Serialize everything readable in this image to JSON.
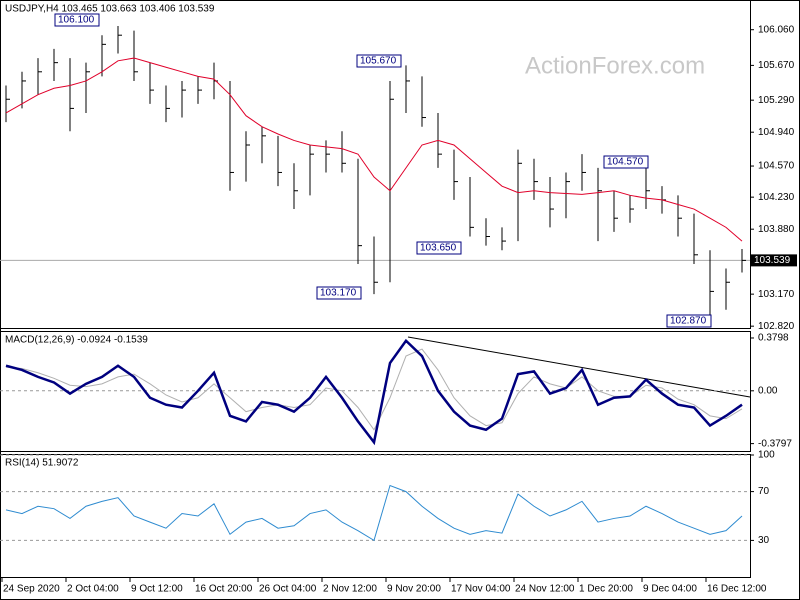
{
  "chart_data": [
    {
      "type": "ohlc",
      "title": "USDJPY,H4  103.465 103.663 103.406 103.539",
      "watermark": "ActionForex.com",
      "categories": [
        "24 Sep 2020",
        null,
        null,
        null,
        "2 Oct 04:00",
        null,
        null,
        null,
        "9 Oct 12:00",
        null,
        null,
        null,
        "16 Oct 20:00",
        null,
        null,
        null,
        "26 Oct 04:00",
        null,
        null,
        null,
        "2 Nov 12:00",
        null,
        null,
        null,
        "9 Nov 20:00",
        null,
        null,
        null,
        "17 Nov 04:00",
        null,
        null,
        null,
        "24 Nov 12:00",
        null,
        null,
        null,
        "1 Dec 20:00",
        null,
        null,
        null,
        "9 Dec 04:00",
        null,
        null,
        null,
        "16 Dec 12:00",
        null,
        null
      ],
      "color": "#000000",
      "high": [
        105.45,
        105.6,
        105.75,
        105.85,
        105.75,
        105.7,
        106.0,
        106.1,
        106.05,
        105.7,
        105.45,
        105.5,
        105.55,
        105.7,
        105.5,
        104.95,
        105.0,
        104.9,
        104.6,
        104.8,
        104.85,
        104.95,
        104.65,
        103.8,
        105.5,
        105.67,
        105.55,
        105.15,
        104.75,
        104.45,
        104.0,
        103.9,
        104.75,
        104.65,
        104.45,
        104.5,
        104.7,
        104.55,
        104.3,
        104.25,
        104.57,
        104.35,
        104.25,
        104.05,
        103.65,
        103.45,
        103.663
      ],
      "low": [
        105.05,
        105.2,
        105.35,
        105.5,
        104.95,
        105.15,
        105.55,
        105.8,
        105.5,
        105.25,
        105.05,
        105.1,
        105.25,
        105.3,
        104.3,
        104.4,
        104.6,
        104.35,
        104.1,
        104.25,
        104.5,
        104.5,
        103.5,
        103.17,
        103.3,
        105.15,
        105.0,
        104.55,
        104.2,
        103.8,
        103.7,
        103.65,
        103.75,
        104.2,
        103.9,
        104.0,
        104.3,
        103.75,
        103.85,
        103.95,
        104.1,
        104.05,
        103.8,
        103.5,
        102.87,
        103.0,
        103.406
      ],
      "close": [
        105.3,
        105.5,
        105.6,
        105.7,
        105.2,
        105.6,
        105.9,
        106.0,
        105.6,
        105.4,
        105.2,
        105.4,
        105.4,
        105.5,
        104.5,
        104.8,
        104.9,
        104.5,
        104.3,
        104.7,
        104.7,
        104.6,
        103.7,
        103.3,
        105.3,
        105.5,
        105.1,
        104.7,
        104.4,
        103.9,
        103.8,
        103.75,
        104.6,
        104.4,
        104.1,
        104.4,
        104.5,
        104.3,
        104.0,
        104.1,
        104.3,
        104.2,
        104.0,
        103.6,
        103.2,
        103.3,
        103.539
      ],
      "ma_color": "#e0002a",
      "ma": [
        105.15,
        105.25,
        105.35,
        105.42,
        105.45,
        105.5,
        105.6,
        105.72,
        105.75,
        105.7,
        105.65,
        105.6,
        105.55,
        105.52,
        105.35,
        105.12,
        105.0,
        104.92,
        104.85,
        104.8,
        104.78,
        104.76,
        104.7,
        104.45,
        104.3,
        104.55,
        104.8,
        104.85,
        104.8,
        104.65,
        104.5,
        104.35,
        104.28,
        104.3,
        104.28,
        104.27,
        104.26,
        104.28,
        104.3,
        104.25,
        104.22,
        104.2,
        104.15,
        104.1,
        104.0,
        103.9,
        103.75
      ],
      "last": 103.539,
      "annotations": [
        "106.100",
        "105.670",
        "103.650",
        "103.170",
        "104.570",
        "102.870"
      ],
      "ylim": [
        102.8,
        106.33
      ],
      "yticks": [
        {
          "value": 106.06,
          "label": "106.060"
        },
        {
          "value": 105.67,
          "label": "105.670"
        },
        {
          "value": 105.29,
          "label": "105.290"
        },
        {
          "value": 104.94,
          "label": "104.940"
        },
        {
          "value": 104.57,
          "label": "104.570"
        },
        {
          "value": 104.23,
          "label": "104.230"
        },
        {
          "value": 103.88,
          "label": "103.880"
        },
        {
          "value": 103.17,
          "label": "103.170"
        },
        {
          "value": 102.82,
          "label": "102.820"
        }
      ]
    },
    {
      "type": "macd",
      "title": "MACD(12,26,9) -0.0924 -0.1539",
      "color": "#00007f",
      "signal_color": "#b0b0b0",
      "values": [
        0.18,
        0.15,
        0.1,
        0.06,
        -0.02,
        0.05,
        0.1,
        0.18,
        0.1,
        -0.05,
        -0.1,
        -0.12,
        0.0,
        0.13,
        -0.18,
        -0.22,
        -0.08,
        -0.1,
        -0.15,
        -0.05,
        0.1,
        -0.05,
        -0.22,
        -0.37,
        0.2,
        0.36,
        0.25,
        0.0,
        -0.15,
        -0.25,
        -0.28,
        -0.2,
        0.12,
        0.14,
        -0.02,
        0.02,
        0.15,
        -0.1,
        -0.05,
        -0.04,
        0.08,
        -0.02,
        -0.1,
        -0.12,
        -0.25,
        -0.18,
        -0.1
      ],
      "signal": [
        0.17,
        0.16,
        0.13,
        0.09,
        0.04,
        0.03,
        0.05,
        0.1,
        0.12,
        0.05,
        -0.03,
        -0.08,
        -0.05,
        0.05,
        -0.05,
        -0.15,
        -0.12,
        -0.1,
        -0.12,
        -0.1,
        0.02,
        0.0,
        -0.12,
        -0.28,
        -0.05,
        0.25,
        0.3,
        0.15,
        -0.05,
        -0.18,
        -0.25,
        -0.23,
        -0.02,
        0.1,
        0.05,
        0.02,
        0.1,
        0.0,
        -0.04,
        -0.04,
        0.04,
        0.02,
        -0.06,
        -0.1,
        -0.18,
        -0.2,
        -0.13
      ],
      "ylim": [
        -0.44,
        0.43
      ],
      "yticks": [
        0.3798,
        {
          "value": 0,
          "label": "0.00"
        },
        -0.3797
      ]
    },
    {
      "type": "rsi",
      "title": "RSI(14) 51.9072",
      "color": "#2e8bd0",
      "values": [
        55,
        52,
        58,
        56,
        48,
        58,
        62,
        65,
        50,
        45,
        40,
        52,
        50,
        60,
        35,
        45,
        48,
        40,
        42,
        52,
        55,
        45,
        38,
        30,
        75,
        70,
        58,
        48,
        40,
        35,
        38,
        36,
        68,
        58,
        50,
        55,
        62,
        45,
        48,
        50,
        58,
        52,
        45,
        40,
        35,
        38,
        50
      ],
      "ylim": [
        0,
        100
      ],
      "yticks": [
        100,
        70,
        30
      ]
    }
  ]
}
